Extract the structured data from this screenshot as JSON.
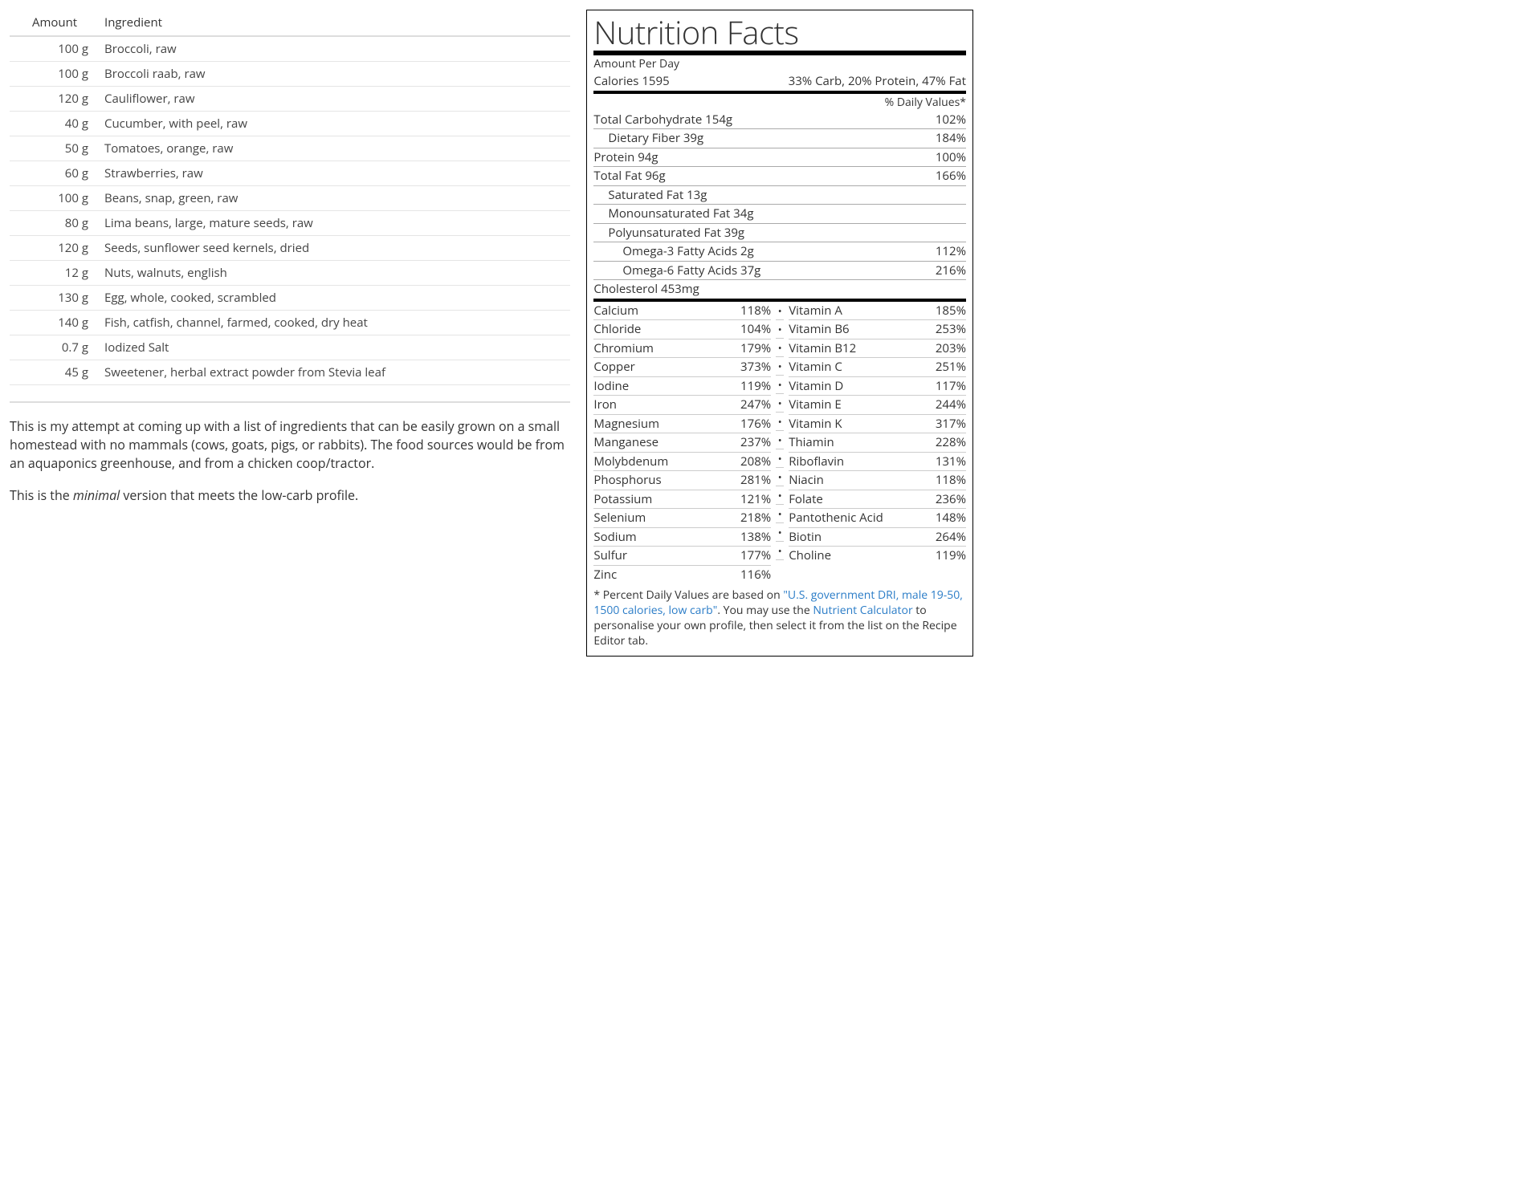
{
  "ingredients_table": {
    "headers": {
      "amount": "Amount",
      "ingredient": "Ingredient"
    },
    "rows": [
      {
        "amount": "100 g",
        "name": "Broccoli, raw"
      },
      {
        "amount": "100 g",
        "name": "Broccoli raab, raw"
      },
      {
        "amount": "120 g",
        "name": "Cauliflower, raw"
      },
      {
        "amount": "40 g",
        "name": "Cucumber, with peel, raw"
      },
      {
        "amount": "50 g",
        "name": "Tomatoes, orange, raw"
      },
      {
        "amount": "60 g",
        "name": "Strawberries, raw"
      },
      {
        "amount": "100 g",
        "name": "Beans, snap, green, raw"
      },
      {
        "amount": "80 g",
        "name": "Lima beans, large, mature seeds, raw"
      },
      {
        "amount": "120 g",
        "name": "Seeds, sunflower seed kernels, dried"
      },
      {
        "amount": "12 g",
        "name": "Nuts, walnuts, english"
      },
      {
        "amount": "130 g",
        "name": "Egg, whole, cooked, scrambled"
      },
      {
        "amount": "140 g",
        "name": "Fish, catfish, channel, farmed, cooked, dry heat"
      },
      {
        "amount": "0.7 g",
        "name": "Iodized Salt"
      },
      {
        "amount": "45 g",
        "name": "Sweetener, herbal extract powder from Stevia leaf"
      }
    ]
  },
  "description": {
    "para1": "This is my attempt at coming up with a list of ingredients that can be easily grown on a small homestead with no mammals (cows, goats, pigs, or rabbits). The food sources would be from an aquaponics greenhouse, and from a chicken coop/tractor.",
    "para2_pre": "This is the ",
    "para2_em": "minimal",
    "para2_post": " version that meets the low-carb profile."
  },
  "nutrition": {
    "title": "Nutrition Facts",
    "amount_per": "Amount Per Day",
    "calories_label": "Calories 1595",
    "macro_split": "33% Carb, 20% Protein, 47% Fat",
    "dv_header": "% Daily Values*",
    "macros": [
      {
        "indent": 0,
        "label": "Total Carbohydrate 154g",
        "pct": "102%"
      },
      {
        "indent": 1,
        "label": "Dietary Fiber 39g",
        "pct": "184%"
      },
      {
        "indent": 0,
        "label": "Protein 94g",
        "pct": "100%"
      },
      {
        "indent": 0,
        "label": "Total Fat 96g",
        "pct": "166%"
      },
      {
        "indent": 1,
        "label": "Saturated Fat 13g",
        "pct": ""
      },
      {
        "indent": 1,
        "label": "Monounsaturated Fat 34g",
        "pct": ""
      },
      {
        "indent": 1,
        "label": "Polyunsaturated Fat 39g",
        "pct": ""
      },
      {
        "indent": 2,
        "label": "Omega-3 Fatty Acids 2g",
        "pct": "112%"
      },
      {
        "indent": 2,
        "label": "Omega-6 Fatty Acids 37g",
        "pct": "216%"
      },
      {
        "indent": 0,
        "label": "Cholesterol 453mg",
        "pct": ""
      }
    ],
    "micros_left": [
      {
        "label": "Calcium",
        "pct": "118%"
      },
      {
        "label": "Chloride",
        "pct": "104%"
      },
      {
        "label": "Chromium",
        "pct": "179%"
      },
      {
        "label": "Copper",
        "pct": "373%"
      },
      {
        "label": "Iodine",
        "pct": "119%"
      },
      {
        "label": "Iron",
        "pct": "247%"
      },
      {
        "label": "Magnesium",
        "pct": "176%"
      },
      {
        "label": "Manganese",
        "pct": "237%"
      },
      {
        "label": "Molybdenum",
        "pct": "208%"
      },
      {
        "label": "Phosphorus",
        "pct": "281%"
      },
      {
        "label": "Potassium",
        "pct": "121%"
      },
      {
        "label": "Selenium",
        "pct": "218%"
      },
      {
        "label": "Sodium",
        "pct": "138%"
      },
      {
        "label": "Sulfur",
        "pct": "177%"
      },
      {
        "label": "Zinc",
        "pct": "116%"
      }
    ],
    "micros_right": [
      {
        "label": "Vitamin A",
        "pct": "185%"
      },
      {
        "label": "Vitamin B6",
        "pct": "253%"
      },
      {
        "label": "Vitamin B12",
        "pct": "203%"
      },
      {
        "label": "Vitamin C",
        "pct": "251%"
      },
      {
        "label": "Vitamin D",
        "pct": "117%"
      },
      {
        "label": "Vitamin E",
        "pct": "244%"
      },
      {
        "label": "Vitamin K",
        "pct": "317%"
      },
      {
        "label": "Thiamin",
        "pct": "228%"
      },
      {
        "label": "Riboflavin",
        "pct": "131%"
      },
      {
        "label": "Niacin",
        "pct": "118%"
      },
      {
        "label": "Folate",
        "pct": "236%"
      },
      {
        "label": "Pantothenic Acid",
        "pct": "148%"
      },
      {
        "label": "Biotin",
        "pct": "264%"
      },
      {
        "label": "Choline",
        "pct": "119%"
      }
    ],
    "footnote": {
      "pre": "* Percent Daily Values are based on ",
      "link1": "\"U.S. government DRI, male 19-50, 1500 calories, low carb\"",
      "mid": ". You may use the ",
      "link2": "Nutrient Calculator",
      "post": " to personalise your own profile, then select it from the list on the Recipe Editor tab."
    }
  },
  "style": {
    "link_color": "#2a7cc7",
    "border_color": "#000000",
    "row_border": "#e5e5e5"
  }
}
